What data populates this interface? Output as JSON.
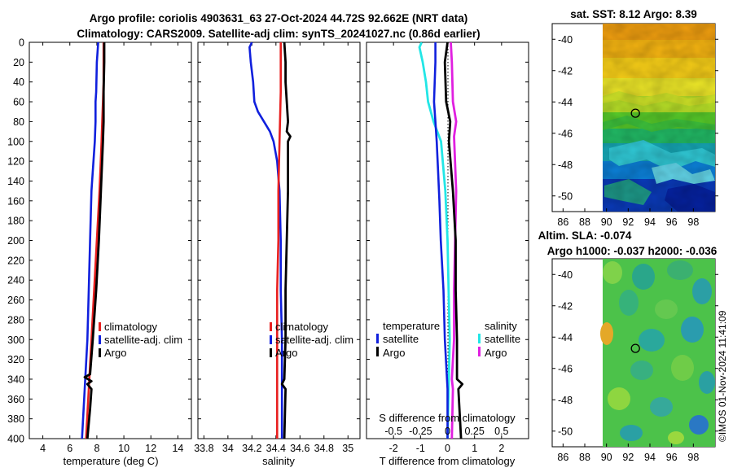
{
  "colors": {
    "climatology": "#e82020",
    "satellite_adj": "#1020dd",
    "argo": "#000000",
    "t_satellite": "#1020dd",
    "s_satellite": "#22e6e6",
    "s_argo": "#e020e0"
  },
  "title": {
    "line1": "Argo profile: coriolis 4903631_63 27-Oct-2024 44.72S 92.662E (NRT data)",
    "line2": "Climatology: CARS2009. Satellite-adj clim: synTS_20241027.nc (0.86d earlier)"
  },
  "chart_data": [
    {
      "type": "line",
      "name": "temperature",
      "xlabel": "temperature (deg C)",
      "ylabel": "",
      "xlim": [
        3,
        15
      ],
      "ylim": [
        400,
        0
      ],
      "xticks": [
        "4",
        "6",
        "8",
        "10",
        "12",
        "14"
      ],
      "yticks": [
        "0",
        "20",
        "40",
        "60",
        "80",
        "100",
        "120",
        "140",
        "160",
        "180",
        "200",
        "220",
        "240",
        "260",
        "280",
        "300",
        "320",
        "340",
        "360",
        "380",
        "400"
      ],
      "legend": [
        "climatology",
        "satellite-adj. clim",
        "Argo"
      ],
      "series": [
        {
          "name": "climatology",
          "depth": [
            0,
            20,
            40,
            60,
            80,
            100,
            150,
            200,
            250,
            300,
            350,
            400
          ],
          "values": [
            8.5,
            8.5,
            8.5,
            8.45,
            8.4,
            8.35,
            8.2,
            8.0,
            7.8,
            7.6,
            7.4,
            7.2
          ]
        },
        {
          "name": "satellite-adj. clim",
          "depth": [
            0,
            20,
            50,
            60,
            80,
            100,
            150,
            200,
            250,
            300,
            350,
            400
          ],
          "values": [
            8.1,
            8.0,
            7.95,
            7.9,
            7.9,
            7.85,
            7.6,
            7.5,
            7.4,
            7.3,
            7.1,
            6.9
          ]
        },
        {
          "name": "Argo",
          "depth": [
            0,
            20,
            50,
            80,
            100,
            150,
            200,
            250,
            300,
            335,
            338,
            342,
            345,
            350,
            370,
            400
          ],
          "values": [
            8.55,
            8.55,
            8.5,
            8.5,
            8.45,
            8.3,
            8.15,
            7.95,
            7.7,
            7.5,
            7.1,
            7.6,
            7.3,
            7.6,
            7.5,
            7.3
          ]
        }
      ]
    },
    {
      "type": "line",
      "name": "salinity",
      "xlabel": "salinity",
      "ylabel": "",
      "xlim": [
        33.75,
        35.1
      ],
      "ylim": [
        400,
        0
      ],
      "xticks": [
        "33.8",
        "34",
        "34.2",
        "34.4",
        "34.6",
        "34.8",
        "35"
      ],
      "legend": [
        "climatology",
        "satellite-adj. clim",
        "Argo"
      ],
      "series": [
        {
          "name": "climatology",
          "depth": [
            0,
            50,
            100,
            150,
            200,
            250,
            300,
            350,
            400
          ],
          "values": [
            34.44,
            34.44,
            34.43,
            34.42,
            34.42,
            34.41,
            34.41,
            34.41,
            34.41
          ]
        },
        {
          "name": "satellite-adj. clim",
          "depth": [
            0,
            5,
            20,
            40,
            60,
            70,
            80,
            90,
            100,
            120,
            150,
            200,
            250,
            300,
            350,
            400
          ],
          "values": [
            34.2,
            34.18,
            34.19,
            34.21,
            34.22,
            34.25,
            34.3,
            34.35,
            34.38,
            34.41,
            34.43,
            34.44,
            34.44,
            34.45,
            34.45,
            34.45
          ]
        },
        {
          "name": "Argo",
          "depth": [
            0,
            20,
            40,
            60,
            80,
            90,
            95,
            100,
            150,
            200,
            250,
            300,
            340,
            345,
            350,
            400
          ],
          "values": [
            34.47,
            34.48,
            34.48,
            34.49,
            34.5,
            34.49,
            34.52,
            34.5,
            34.5,
            34.49,
            34.48,
            34.48,
            34.47,
            34.45,
            34.48,
            34.47
          ]
        }
      ]
    },
    {
      "type": "line",
      "name": "difference from climatology",
      "xlabel": "T difference from climatology",
      "xlabel_top": "S difference from climatology",
      "xlim": [
        -3,
        3
      ],
      "ylim": [
        400,
        0
      ],
      "xticks": [
        "-2",
        "-1",
        "0",
        "1",
        "2"
      ],
      "xticks_top": [
        "-0.5",
        "-0.25",
        "0",
        "0.25",
        "0.5"
      ],
      "legend_headers": [
        "temperature",
        "salinity"
      ],
      "legend": [
        "satellite",
        "Argo",
        "satellite",
        "Argo"
      ],
      "series": [
        {
          "name": "temperature satellite",
          "depth": [
            0,
            20,
            60,
            80,
            100,
            130,
            160,
            200,
            250,
            300,
            350,
            400
          ],
          "values": [
            -0.45,
            -0.45,
            -0.5,
            -0.45,
            -0.4,
            -0.35,
            -0.3,
            -0.25,
            -0.15,
            -0.1,
            0,
            0
          ]
        },
        {
          "name": "temperature Argo",
          "depth": [
            0,
            20,
            60,
            80,
            100,
            150,
            200,
            250,
            300,
            340,
            345,
            350,
            400
          ],
          "values": [
            0,
            -0.1,
            -0.05,
            0.1,
            0.05,
            0.2,
            0.3,
            0.3,
            0.35,
            0.35,
            0.55,
            0.4,
            0.5
          ]
        },
        {
          "name": "salinity satellite",
          "depth": [
            0,
            5,
            20,
            40,
            60,
            80,
            100,
            150,
            200,
            250,
            300,
            350,
            400
          ],
          "values": [
            -0.24,
            -0.26,
            -0.23,
            -0.2,
            -0.18,
            -0.13,
            -0.06,
            -0.02,
            0,
            0.01,
            0.02,
            0.01,
            0
          ]
        },
        {
          "name": "salinity Argo",
          "depth": [
            0,
            20,
            60,
            80,
            95,
            150,
            200,
            250,
            300,
            340,
            350,
            400
          ],
          "values": [
            0.03,
            0.04,
            0.05,
            0.08,
            0.06,
            0.08,
            0.07,
            0.06,
            0.06,
            0.04,
            0.05,
            0.04
          ]
        }
      ]
    },
    {
      "type": "heatmap",
      "name": "SST map",
      "title": "sat. SST: 8.12 Argo: 8.39",
      "xlim": [
        85,
        100
      ],
      "ylim": [
        -51,
        -39
      ],
      "xticks": [
        "86",
        "88",
        "90",
        "92",
        "94",
        "96",
        "98"
      ],
      "yticks": [
        "-40",
        "-42",
        "-44",
        "-46",
        "-48",
        "-50"
      ],
      "marker": {
        "lon": 92.662,
        "lat": -44.72
      }
    },
    {
      "type": "heatmap",
      "name": "SLA map",
      "title_line1": "Altim. SLA: -0.074",
      "title_line2": "Argo h1000: -0.037 h2000: -0.036",
      "xlim": [
        85,
        100
      ],
      "ylim": [
        -51,
        -39
      ],
      "xticks": [
        "86",
        "88",
        "90",
        "92",
        "94",
        "96",
        "98"
      ],
      "yticks": [
        "-40",
        "-42",
        "-44",
        "-46",
        "-48",
        "-50"
      ],
      "marker": {
        "lon": 92.662,
        "lat": -44.72
      }
    }
  ],
  "watermark": "©IMOS 01-Nov-2024 11:41:09"
}
